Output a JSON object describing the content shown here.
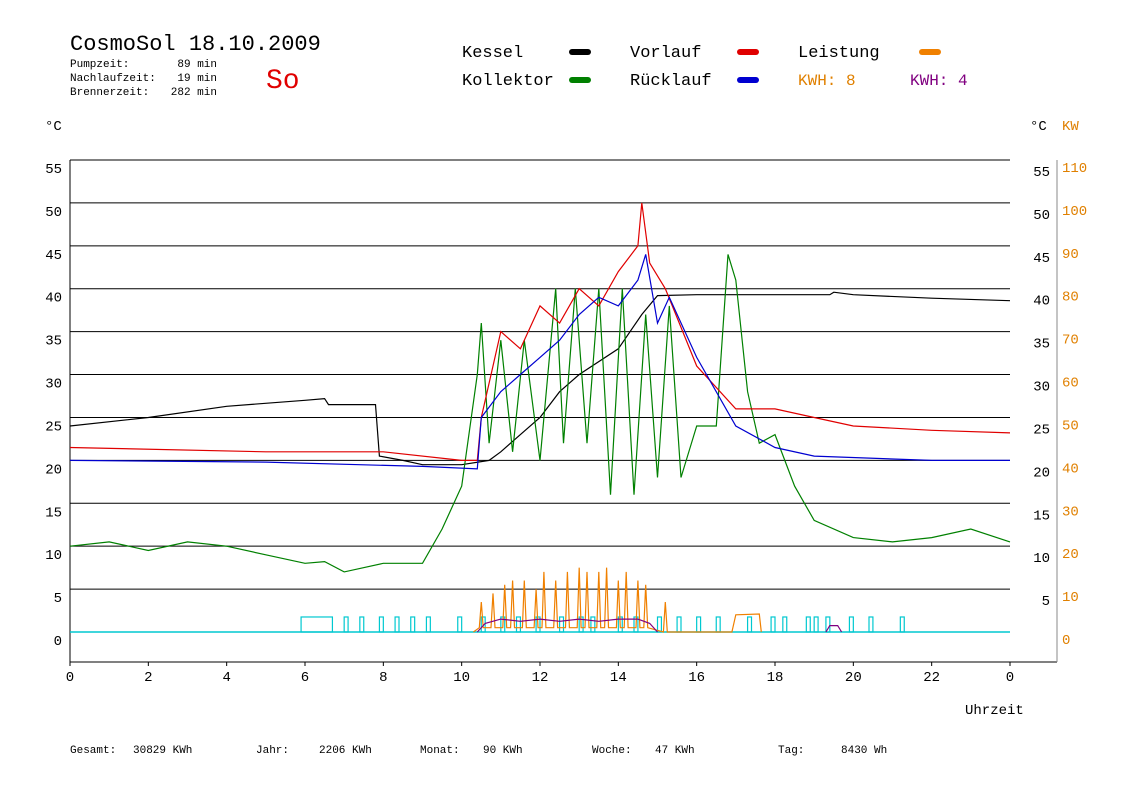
{
  "header": {
    "title": "CosmoSol 18.10.2009",
    "day": "So",
    "stats": [
      [
        "Pumpzeit:",
        "89 min"
      ],
      [
        "Nachlaufzeit:",
        "19 min"
      ],
      [
        "Brennerzeit:",
        "282 min"
      ]
    ]
  },
  "footer": [
    [
      "Gesamt:",
      "30829 KWh"
    ],
    [
      "Jahr:",
      "2206 KWh"
    ],
    [
      "Monat:",
      "90 KWh"
    ],
    [
      "Woche:",
      "47 KWh"
    ],
    [
      "Tag:",
      "8430 Wh"
    ]
  ],
  "chart_data": {
    "type": "line",
    "y_label": "°C",
    "y2_label_c": "°C",
    "y2_label": "KW",
    "x_label": "Uhrzeit",
    "xlim": [
      0,
      24
    ],
    "xticks": [
      0,
      2,
      4,
      6,
      8,
      10,
      12,
      14,
      16,
      18,
      20,
      22,
      {
        "value": 24,
        "label": "0"
      }
    ],
    "ylim": [
      0,
      55
    ],
    "yticks": [
      0,
      5,
      10,
      15,
      20,
      25,
      30,
      35,
      40,
      45,
      50,
      55
    ],
    "yticks_right": [
      5,
      10,
      15,
      20,
      25,
      30,
      35,
      40,
      45,
      50,
      55
    ],
    "y2lim": [
      0,
      110
    ],
    "y2ticks": [
      0,
      10,
      20,
      30,
      40,
      50,
      60,
      70,
      80,
      90,
      100,
      110
    ],
    "grid": true,
    "series": [
      {
        "name": "Kessel",
        "color": "#000000",
        "x": [
          0,
          2,
          4,
          6,
          6.5,
          6.6,
          7.8,
          7.9,
          8.5,
          9,
          10,
          10.7,
          11,
          11.5,
          12,
          12.5,
          13,
          14,
          14.6,
          15,
          16,
          19.4,
          19.5,
          20,
          22,
          24
        ],
        "values": [
          24,
          25,
          26.3,
          27,
          27.2,
          26.5,
          26.5,
          20.5,
          20,
          19.5,
          19.5,
          20,
          21,
          23,
          25,
          28,
          30,
          33,
          37,
          39.2,
          39.3,
          39.3,
          39.6,
          39.3,
          38.9,
          38.6
        ]
      },
      {
        "name": "Kollektor",
        "color": "#008000",
        "x": [
          0,
          1,
          2,
          3,
          4,
          5,
          6,
          6.5,
          7,
          8,
          9,
          9.5,
          10,
          10.4,
          10.5,
          10.7,
          11,
          11.3,
          11.6,
          12,
          12.4,
          12.6,
          12.9,
          13.2,
          13.5,
          13.8,
          14.1,
          14.4,
          14.7,
          15,
          15.3,
          15.6,
          16,
          16.5,
          16.8,
          17,
          17.3,
          17.6,
          18,
          18.5,
          19,
          20,
          21,
          22,
          23,
          24
        ],
        "values": [
          10,
          10.5,
          9.5,
          10.5,
          10,
          9,
          8,
          8.2,
          7,
          8,
          8,
          12,
          17,
          30,
          36,
          22,
          34,
          21,
          34,
          20,
          40,
          22,
          40,
          22,
          40,
          16,
          40,
          16,
          37,
          18,
          38,
          18,
          24,
          24,
          44,
          41,
          28,
          22,
          23,
          17,
          13,
          11,
          10.5,
          11,
          12,
          10.5
        ]
      },
      {
        "name": "Vorlauf",
        "color": "#e00000",
        "x": [
          0,
          5,
          8,
          10,
          10.4,
          10.5,
          11,
          11.5,
          12,
          12.5,
          13,
          13.5,
          14,
          14.5,
          14.6,
          14.8,
          15.2,
          16,
          17,
          18,
          19,
          20,
          22,
          24
        ],
        "values": [
          21.5,
          21,
          21,
          20,
          20,
          25,
          35,
          33,
          38,
          36,
          40,
          38,
          42,
          45,
          50,
          43,
          40,
          31,
          26,
          26,
          25,
          24,
          23.5,
          23.2
        ]
      },
      {
        "name": "Rücklauf",
        "color": "#0000d0",
        "x": [
          0,
          5,
          9,
          10.4,
          10.5,
          11,
          11.5,
          12,
          12.5,
          13,
          13.5,
          14,
          14.5,
          14.7,
          15,
          15.3,
          16,
          17,
          18,
          19,
          22,
          24
        ],
        "values": [
          20,
          19.8,
          19.3,
          19,
          25,
          28,
          30,
          32,
          34,
          37,
          39,
          38,
          41,
          44,
          36,
          39,
          32,
          24,
          21.5,
          20.5,
          20,
          20
        ]
      },
      {
        "name": "Leistung",
        "color": "#f08000",
        "axis": "y2",
        "x": [
          10.3,
          10.45,
          10.5,
          10.55,
          10.75,
          10.8,
          10.85,
          11.05,
          11.1,
          11.15,
          11.25,
          11.3,
          11.35,
          11.55,
          11.6,
          11.65,
          11.85,
          11.9,
          11.95,
          12.05,
          12.1,
          12.15,
          12.35,
          12.4,
          12.45,
          12.65,
          12.7,
          12.75,
          12.95,
          13.0,
          13.05,
          13.15,
          13.2,
          13.25,
          13.45,
          13.5,
          13.55,
          13.65,
          13.7,
          13.75,
          13.95,
          14.0,
          14.05,
          14.15,
          14.2,
          14.25,
          14.45,
          14.5,
          14.55,
          14.65,
          14.7,
          14.75,
          15.15,
          15.2,
          15.25,
          16.9,
          17.0,
          17.6,
          17.65
        ],
        "values": [
          0,
          1,
          7,
          1,
          1,
          9,
          1,
          1,
          11,
          1,
          1,
          12,
          1,
          1,
          12,
          1,
          1,
          10,
          1,
          1,
          14,
          1,
          1,
          12,
          1,
          1,
          14,
          1,
          1,
          15,
          1,
          1,
          14,
          1,
          1,
          14,
          1,
          1,
          15,
          1,
          1,
          12,
          1,
          1,
          14,
          1,
          1,
          12,
          1,
          1,
          11,
          1,
          0,
          7,
          0,
          0,
          4,
          4.2,
          0
        ]
      },
      {
        "color": "#800080",
        "axis": "y2",
        "x": [
          10.4,
          10.6,
          11,
          11.5,
          12,
          12.5,
          13,
          13.5,
          14,
          14.5,
          14.8,
          15.0,
          17,
          19.3,
          19.4,
          19.6,
          19.7
        ],
        "values": [
          0,
          2,
          3,
          2.5,
          3,
          2.5,
          3,
          2.5,
          3,
          3,
          2,
          0,
          null,
          0,
          1.5,
          1.5,
          0
        ]
      }
    ],
    "kwh_labels": [
      {
        "text": "KWH: 8",
        "color": "#e08000"
      },
      {
        "text": "KWH: 4",
        "color": "#800080"
      }
    ],
    "pump": {
      "color": "#00c8d0",
      "level": 3.5,
      "intervals": [
        [
          5.9,
          6.7
        ],
        [
          7.0,
          7.1
        ],
        [
          7.4,
          7.5
        ],
        [
          7.9,
          8.0
        ],
        [
          8.3,
          8.4
        ],
        [
          8.7,
          8.8
        ],
        [
          9.1,
          9.2
        ],
        [
          9.9,
          10.0
        ],
        [
          10.5,
          10.6
        ],
        [
          11.0,
          11.1
        ],
        [
          11.4,
          11.5
        ],
        [
          11.9,
          12.0
        ],
        [
          12.5,
          12.6
        ],
        [
          13.0,
          13.1
        ],
        [
          13.3,
          13.4
        ],
        [
          14.0,
          14.1
        ],
        [
          14.4,
          14.5
        ],
        [
          15.0,
          15.1
        ],
        [
          15.5,
          15.6
        ],
        [
          16.0,
          16.1
        ],
        [
          16.5,
          16.6
        ],
        [
          17.3,
          17.4
        ],
        [
          17.9,
          18.0
        ],
        [
          18.2,
          18.3
        ],
        [
          18.8,
          18.9
        ],
        [
          19.0,
          19.1
        ],
        [
          19.3,
          19.4
        ],
        [
          19.9,
          20.0
        ],
        [
          20.4,
          20.5
        ],
        [
          21.2,
          21.3
        ]
      ]
    }
  }
}
